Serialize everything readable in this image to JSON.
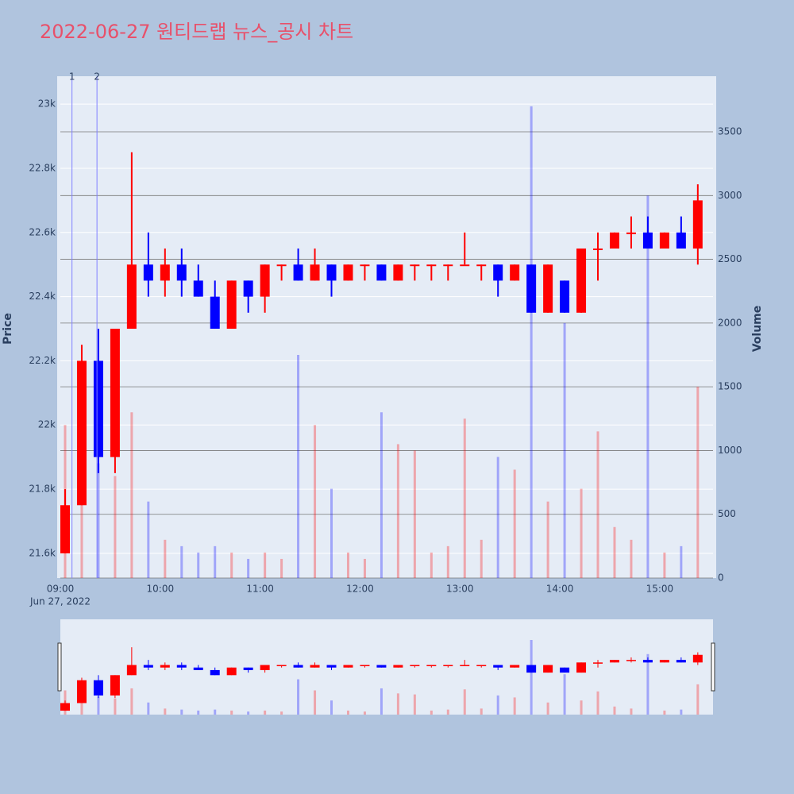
{
  "chart_data": {
    "type": "candlestick",
    "title": "2022-06-27 원티드랩 뉴스_공시 차트",
    "y_label": "Price",
    "y2_label": "Volume",
    "date_label": "Jun 27, 2022",
    "up_color": "#ff0000",
    "down_color": "#0000ff",
    "x": [
      "09:00",
      "09:10",
      "09:20",
      "09:30",
      "09:40",
      "09:50",
      "10:00",
      "10:10",
      "10:20",
      "10:30",
      "10:40",
      "10:50",
      "11:00",
      "11:10",
      "11:20",
      "11:30",
      "11:40",
      "11:50",
      "12:00",
      "12:10",
      "12:20",
      "12:30",
      "12:40",
      "12:50",
      "13:00",
      "13:10",
      "13:20",
      "13:30",
      "13:40",
      "13:50",
      "14:00",
      "14:10",
      "14:20",
      "14:30",
      "14:40",
      "14:50",
      "15:00",
      "15:10",
      "15:20"
    ],
    "open": [
      21600,
      21750,
      22200,
      21900,
      22300,
      22500,
      22450,
      22500,
      22450,
      22400,
      22300,
      22450,
      22400,
      22500,
      22500,
      22450,
      22500,
      22450,
      22500,
      22500,
      22450,
      22500,
      22500,
      22500,
      22500,
      22500,
      22500,
      22450,
      22500,
      22350,
      22450,
      22350,
      22550,
      22550,
      22600,
      22600,
      22550,
      22600,
      22550
    ],
    "high": [
      21800,
      22250,
      22300,
      22300,
      22850,
      22600,
      22550,
      22550,
      22500,
      22450,
      22450,
      22450,
      22500,
      22500,
      22550,
      22550,
      22500,
      22500,
      22500,
      22500,
      22500,
      22500,
      22500,
      22500,
      22600,
      22500,
      22500,
      22500,
      22500,
      22500,
      22450,
      22550,
      22600,
      22600,
      22650,
      22650,
      22600,
      22650,
      22750
    ],
    "low": [
      21600,
      21750,
      21850,
      21850,
      22300,
      22400,
      22400,
      22400,
      22400,
      22300,
      22300,
      22350,
      22350,
      22450,
      22450,
      22450,
      22400,
      22450,
      22450,
      22450,
      22450,
      22450,
      22450,
      22450,
      22500,
      22450,
      22400,
      22450,
      22350,
      22350,
      22350,
      22350,
      22450,
      22550,
      22550,
      22550,
      22550,
      22550,
      22500
    ],
    "close": [
      21750,
      22200,
      21900,
      22300,
      22500,
      22450,
      22500,
      22450,
      22400,
      22300,
      22450,
      22400,
      22500,
      22500,
      22450,
      22500,
      22450,
      22500,
      22500,
      22450,
      22500,
      22500,
      22500,
      22500,
      22500,
      22500,
      22450,
      22500,
      22350,
      22500,
      22350,
      22550,
      22550,
      22600,
      22600,
      22550,
      22600,
      22550,
      22700
    ],
    "volume": [
      1200,
      1500,
      900,
      800,
      1300,
      600,
      300,
      250,
      200,
      250,
      200,
      150,
      200,
      150,
      1750,
      1200,
      700,
      200,
      150,
      1300,
      1050,
      1000,
      200,
      250,
      1250,
      300,
      950,
      850,
      3700,
      600,
      2000,
      700,
      1150,
      400,
      300,
      3000,
      200,
      250,
      1500
    ],
    "xlim": [
      "09:00",
      "15:32"
    ],
    "xticks": [
      "09:00",
      "10:00",
      "11:00",
      "12:00",
      "13:00",
      "14:00",
      "15:00"
    ],
    "ylim": [
      21523,
      23087
    ],
    "yticks": [
      {
        "value": 21600,
        "label": "21.6k"
      },
      {
        "value": 21800,
        "label": "21.8k"
      },
      {
        "value": 22000,
        "label": "22k"
      },
      {
        "value": 22200,
        "label": "22.2k"
      },
      {
        "value": 22400,
        "label": "22.4k"
      },
      {
        "value": 22600,
        "label": "22.6k"
      },
      {
        "value": 22800,
        "label": "22.8k"
      },
      {
        "value": 23000,
        "label": "23k"
      }
    ],
    "y2lim": [
      0,
      3936
    ],
    "y2ticks": [
      0,
      500,
      1000,
      1500,
      2000,
      2500,
      3000,
      3500
    ],
    "annotations": [
      {
        "x": "09:07",
        "text": "1"
      },
      {
        "x": "09:22",
        "text": "2"
      }
    ]
  }
}
